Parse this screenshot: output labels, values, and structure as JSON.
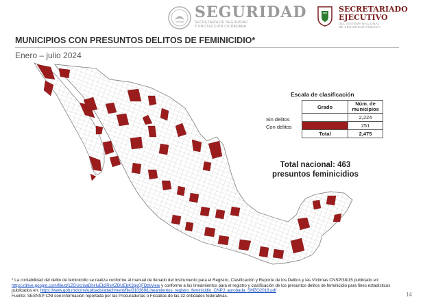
{
  "header": {
    "seguridad_title": "SEGURIDAD",
    "seguridad_sub1": "SECRETARÍA DE SEGURIDAD",
    "seguridad_sub2": "Y PROTECCIÓN CIUDADANA",
    "sesnsp_title1": "SECRETARIADO",
    "sesnsp_title2": "EJECUTIVO",
    "sesnsp_sub1": "DEL SISTEMA NACIONAL",
    "sesnsp_sub2": "DE SEGURIDAD PÚBLICA"
  },
  "title": "MUNICIPIOS CON PRESUNTOS DELITOS DE FEMINICIDIO*",
  "subtitle": "Enero – julio 2024",
  "legend": {
    "title": "Escala de clasificación",
    "col_grado": "Grado",
    "col_num": "Núm. de municipios",
    "rows": [
      {
        "label": "Sin delitos",
        "count": "2,224",
        "color": "#ffffff"
      },
      {
        "label": "Con delitos",
        "count": "251",
        "color": "#9b1c1c"
      }
    ],
    "total_label": "Total",
    "total_count": "2,475"
  },
  "total_nacional_line1": "Total nacional: 463",
  "total_nacional_line2": "presuntos feminicidios",
  "footnote": {
    "text1": "* La contabilidad del delito de feminicidio se realiza conforme al manual de llenado del Instrumento para el Registro, Clasificación y Reporte de los Delitos y las Víctimas CNSP/38/15 publicado en: ",
    "link1": "https://drive.google.com/file/d/1ZGUcrisaDhHuEk3RsXZDUEbK3qxQFDzt/view",
    "text2": " y conforme a los lineamientos para el registro y clasificación de los presuntos delitos de feminicidio para fines estadísticos publicados en: ",
    "link2": "https://www.gob.mx/cms/uploads/attachment/file/310369/Lineamientos_registro_feminicidio_CNPJ_aprobada_SMZO2018.pdf",
    "source": "Fuente: SESNSP-CNI con información reportada por las Procuradurías o Fiscalías de las 32 entidades federativas."
  },
  "page_number": "14",
  "colors": {
    "accent_red": "#9b1c1c",
    "map_stroke": "#8a8a8a",
    "seguridad_gray": "#9a9a9a",
    "sesnsp_red": "#7a1f1f"
  }
}
